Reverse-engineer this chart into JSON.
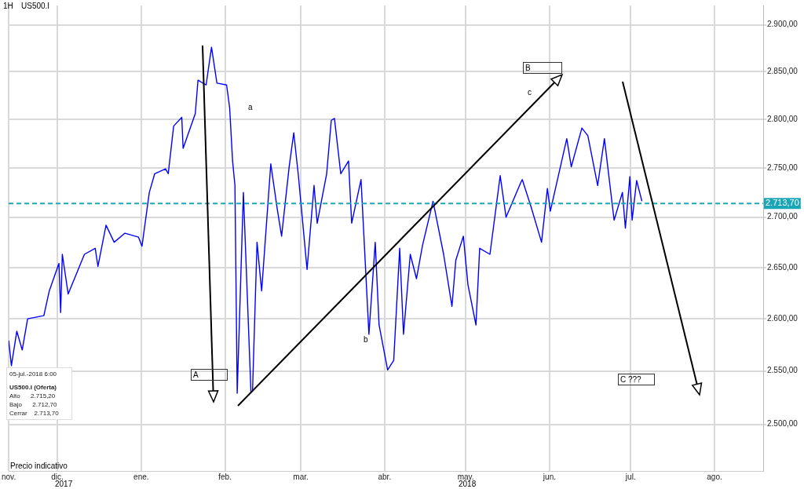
{
  "chart_data": {
    "type": "line",
    "title": "US500.I",
    "x": [
      "2017-11-13",
      "2017-11-14",
      "2017-11-16",
      "2017-11-18",
      "2017-11-20",
      "2017-11-26",
      "2017-11-28",
      "2017-12-01T14:00",
      "2017-12-02T05:00",
      "2017-12-02T20:00",
      "2017-12-05",
      "2017-12-11",
      "2017-12-15",
      "2017-12-16",
      "2017-12-19",
      "2017-12-22",
      "2017-12-26",
      "2017-12-31",
      "2018-01-01T07:00",
      "2018-01-04",
      "2018-01-06",
      "2018-01-10",
      "2018-01-11",
      "2018-01-13",
      "2018-01-16",
      "2018-01-16T12:00",
      "2018-01-21",
      "2018-01-22",
      "2018-01-25",
      "2018-01-27",
      "2018-01-29",
      "2018-02-01T14:00",
      "2018-02-02T17:00",
      "2018-02-03T19:00",
      "2018-02-04T16:00",
      "2018-02-05T12:00",
      "2018-02-07T19:00",
      "2018-02-10T14:00",
      "2018-02-11T04:00",
      "2018-02-12T20:00",
      "2018-02-14T13:00",
      "2018-02-17T22:00",
      "2018-02-20T05:00",
      "2018-02-21T22:00",
      "2018-02-24T17:00",
      "2018-02-26T10:00",
      "2018-02-28T03:00",
      "2018-03-03T08:00",
      "2018-03-05T22:00",
      "2018-03-07T02:00",
      "2018-03-10T14:00",
      "2018-03-12T07:00",
      "2018-03-13T11:00",
      "2018-03-15T19:00",
      "2018-03-18T16:00",
      "2018-03-19T20:00",
      "2018-03-23T07:00",
      "2018-03-26T05:00",
      "2018-03-28T13:00",
      "2018-03-29T23:00",
      "2018-04-02T03:00",
      "2018-04-04T09:00",
      "2018-04-06T14:00",
      "2018-04-08T00:00",
      "2018-04-10T12:00",
      "2018-04-12T19:00",
      "2018-04-15T01:00",
      "2018-04-18T22:00",
      "2018-04-22T20:00",
      "2018-04-25T22:00",
      "2018-04-27T08:00",
      "2018-04-30T03:00",
      "2018-05-01T20:00",
      "2018-05-04T19:00",
      "2018-05-06T04:00",
      "2018-05-09T23:00",
      "2018-05-13T18:00",
      "2018-05-15T22:00",
      "2018-05-21T09:00",
      "2018-05-21T22:00",
      "2018-05-25T05:00",
      "2018-05-29T01:00",
      "2018-05-31T05:00",
      "2018-06-01T07:00",
      "2018-06-07T09:00",
      "2018-06-09T01:00",
      "2018-06-12T23:00",
      "2018-06-15T04:00",
      "2018-06-18T19:00",
      "2018-06-21T07:00",
      "2018-06-24T21:00",
      "2018-06-27T23:00",
      "2018-06-29T01:00",
      "2018-06-30T17:00",
      "2018-07-01T13:00",
      "2018-07-03T05:00",
      "2018-07-05T04:00"
    ],
    "series": [
      {
        "color": "#0000ff",
        "values": [
          2579,
          2555,
          2588,
          2570,
          2600,
          2603,
          2627,
          2654,
          2606,
          2663,
          2624,
          2663,
          2669,
          2651,
          2692,
          2675,
          2684,
          2680,
          2671,
          2725,
          2744,
          2749,
          2744,
          2793,
          2802,
          2770,
          2806,
          2841,
          2836,
          2876,
          2838,
          2836,
          2812,
          2757,
          2732,
          2529,
          2725,
          2530,
          2531,
          2675,
          2627,
          2754,
          2710,
          2681,
          2751,
          2786,
          2742,
          2648,
          2732,
          2694,
          2744,
          2799,
          2801,
          2744,
          2757,
          2694,
          2738,
          2585,
          2675,
          2594,
          2551,
          2560,
          2669,
          2585,
          2663,
          2639,
          2672,
          2716,
          2663,
          2612,
          2657,
          2681,
          2633,
          2594,
          2669,
          2663,
          2742,
          2700,
          2735,
          2738,
          2710,
          2675,
          2729,
          2706,
          2780,
          2751,
          2791,
          2783,
          2732,
          2780,
          2697,
          2725,
          2689,
          2741,
          2697,
          2737,
          2716
        ]
      }
    ],
    "xlim": [
      "2017-11-13",
      "2018-08-19"
    ],
    "xticks": [
      {
        "value": "2017-11-13",
        "label": "nov."
      },
      {
        "value": "2017-12-01",
        "label": "dic."
      },
      {
        "value": "2018-01-01",
        "label": "ene."
      },
      {
        "value": "2018-02-01",
        "label": "feb."
      },
      {
        "value": "2018-03-01",
        "label": "mar."
      },
      {
        "value": "2018-04-01",
        "label": "abr."
      },
      {
        "value": "2018-05-01",
        "label": "may."
      },
      {
        "value": "2018-06-01",
        "label": "jun."
      },
      {
        "value": "2018-07-01",
        "label": "jul."
      },
      {
        "value": "2018-08-01",
        "label": "ago."
      }
    ],
    "ylim": [
      2457,
      2921
    ],
    "log": "y",
    "yticks": [
      {
        "value": 2500,
        "label": "2.500,00"
      },
      {
        "value": 2550,
        "label": "2.550,00"
      },
      {
        "value": 2600,
        "label": "2.600,00"
      },
      {
        "value": 2650,
        "label": "2.650,00"
      },
      {
        "value": 2700,
        "label": "2.700,00"
      },
      {
        "value": 2750,
        "label": "2.750,00"
      },
      {
        "value": 2800,
        "label": "2.800,00"
      },
      {
        "value": 2850,
        "label": "2.850,00"
      },
      {
        "value": 2900,
        "label": "2.900,00"
      }
    ],
    "grid": true,
    "legend": false,
    "ref_lines": [
      {
        "axis": "y",
        "value": 2713.7,
        "label": "2.713,70",
        "color": "#1aa6b7",
        "line_style": "dashed"
      }
    ],
    "annotations": [
      "1H",
      "05-jul.-2018 6:00",
      "US500.I (Oferta)",
      "Alto      2.715,20",
      "Bajo      2.712,70",
      "Cerrar    2.713,70",
      "Precio indicativo",
      "a",
      "b",
      "c",
      "A",
      "B",
      "C ???",
      "2017",
      "2018"
    ]
  }
}
